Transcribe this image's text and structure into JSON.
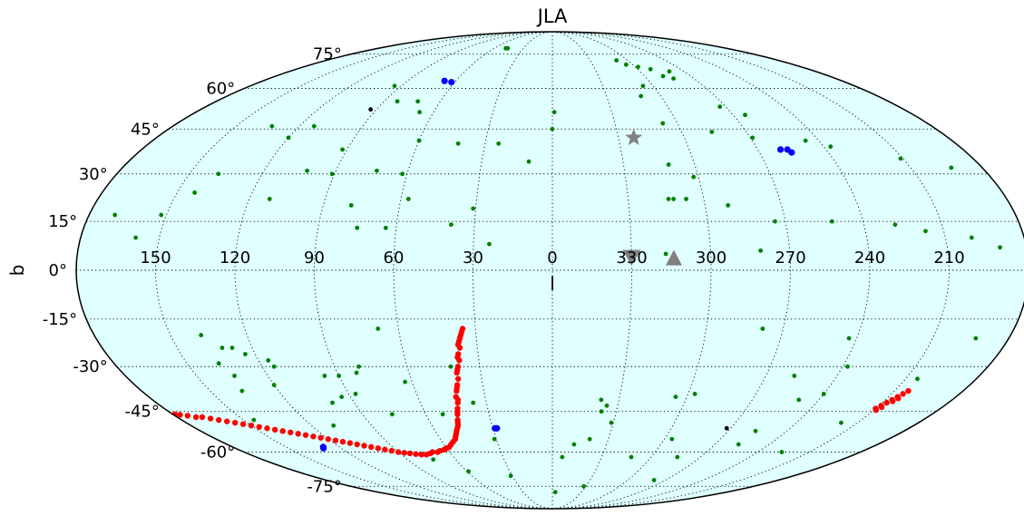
{
  "chart_data": {
    "type": "scatter",
    "projection": "mollweide",
    "title": "JLA",
    "xlabel": "l",
    "ylabel": "b",
    "background_color": "#e0ffff",
    "grid": true,
    "x_tick_labels": [
      150,
      120,
      90,
      60,
      30,
      0,
      330,
      300,
      270,
      240,
      210
    ],
    "y_tick_labels": [
      75,
      60,
      45,
      30,
      15,
      0,
      -15,
      -30,
      -45,
      -60,
      -75
    ],
    "tick_label_strings": {
      "x": [
        "150",
        "120",
        "90",
        "60",
        "30",
        "0",
        "330",
        "300",
        "270",
        "240",
        "210"
      ],
      "y": [
        "75°",
        "60°",
        "45°",
        "30°",
        "15°",
        "0°",
        "-15°",
        "-30°",
        "-45°",
        "-60°",
        "-75°"
      ]
    },
    "xlim": [
      180,
      -180
    ],
    "ylim": [
      -90,
      90
    ],
    "series": [
      {
        "color": "#008000",
        "marker": "circle",
        "points": [
          [
            48,
            78
          ],
          [
            46,
            78
          ],
          [
            0,
            45
          ],
          [
            -51,
            72
          ],
          [
            -55,
            70
          ],
          [
            -62,
            69
          ],
          [
            -69,
            68
          ],
          [
            -80,
            67
          ],
          [
            -72,
            65
          ],
          [
            -77,
            64
          ],
          [
            -54,
            61
          ],
          [
            -49,
            57
          ],
          [
            -87,
            53
          ],
          [
            -96,
            50
          ],
          [
            -53,
            47
          ],
          [
            -74,
            44
          ],
          [
            -91,
            42
          ],
          [
            -114,
            41
          ],
          [
            -123,
            39
          ],
          [
            -149,
            35
          ],
          [
            -167,
            32
          ],
          [
            -49,
            33
          ],
          [
            -58,
            29
          ],
          [
            -48,
            22
          ],
          [
            -53,
            22
          ],
          [
            -46,
            22
          ],
          [
            -69,
            20
          ],
          [
            -86,
            15
          ],
          [
            -108,
            15
          ],
          [
            -132,
            14
          ],
          [
            -143,
            12
          ],
          [
            -160,
            10
          ],
          [
            -170,
            7
          ],
          [
            94,
            61
          ],
          [
            83,
            55
          ],
          [
            72,
            55
          ],
          [
            67,
            51
          ],
          [
            133,
            46
          ],
          [
            113,
            46
          ],
          [
            120,
            42
          ],
          [
            92,
            38
          ],
          [
            60,
            41
          ],
          [
            42,
            40
          ],
          [
            24,
            40
          ],
          [
            -1,
            51
          ],
          [
            10,
            34
          ],
          [
            102,
            31
          ],
          [
            91,
            30
          ],
          [
            73,
            31
          ],
          [
            138,
            30
          ],
          [
            62,
            30
          ],
          [
            143,
            24
          ],
          [
            170,
            17
          ],
          [
            152,
            17
          ],
          [
            112,
            22
          ],
          [
            79,
            20
          ],
          [
            57,
            22
          ],
          [
            31,
            19
          ],
          [
            39,
            14
          ],
          [
            75,
            13
          ],
          [
            64,
            13
          ],
          [
            159,
            10
          ],
          [
            24,
            8
          ],
          [
            -79,
            6
          ],
          [
            -43,
            5
          ],
          [
            -63,
            -39
          ],
          [
            -55,
            -40
          ],
          [
            -25,
            -43
          ],
          [
            -22,
            -41
          ],
          [
            -23,
            -45
          ],
          [
            -20,
            -55
          ],
          [
            -64,
            -55
          ],
          [
            -104,
            -52
          ],
          [
            -120,
            -39
          ],
          [
            -111,
            -41
          ],
          [
            -102,
            -33
          ],
          [
            -117,
            -21
          ],
          [
            -122,
            -30
          ],
          [
            -155,
            -34
          ],
          [
            -167,
            -21
          ],
          [
            -142,
            -49
          ],
          [
            -103,
            -57
          ],
          [
            -48,
            -62
          ],
          [
            -81,
            -72
          ],
          [
            -134,
            -60
          ],
          [
            -29,
            -49
          ],
          [
            -12,
            -57
          ],
          [
            -28,
            -75
          ],
          [
            80,
            -30
          ],
          [
            82,
            -32
          ],
          [
            63,
            -35
          ],
          [
            76,
            -46
          ],
          [
            100,
            -42
          ],
          [
            120,
            -36
          ],
          [
            128,
            -24
          ],
          [
            138,
            -20
          ],
          [
            137,
            -29
          ],
          [
            132,
            -24
          ],
          [
            124,
            -26
          ],
          [
            115,
            -30
          ],
          [
            134,
            -33
          ],
          [
            136,
            -38
          ],
          [
            145,
            -48
          ],
          [
            109,
            -50
          ],
          [
            96,
            -33
          ],
          [
            90,
            -33
          ],
          [
            87,
            -39
          ],
          [
            94,
            -40
          ],
          [
            42,
            -30
          ],
          [
            36,
            -42
          ],
          [
            52,
            -46
          ],
          [
            -6,
            -62
          ],
          [
            -3,
            -78
          ],
          [
            74,
            -63
          ],
          [
            59,
            -68
          ],
          [
            31,
            -70
          ],
          [
            68,
            -18
          ],
          [
            31,
            -55
          ],
          [
            -82,
            -18
          ],
          [
            -76,
            -62
          ],
          [
            116,
            -28
          ]
        ]
      },
      {
        "color": "#0000ff",
        "marker": "circle",
        "points": [
          [
            67,
            63
          ],
          [
            62,
            62.5
          ],
          [
            -103,
            38
          ],
          [
            -104,
            37
          ],
          [
            -100,
            38
          ],
          [
            29,
            -51
          ],
          [
            28,
            -51
          ],
          [
            129,
            -58
          ],
          [
            130,
            -58.5
          ]
        ]
      },
      {
        "color": "#000000",
        "marker": "circle",
        "points": [
          [
            93,
            52
          ],
          [
            -88,
            -51
          ]
        ]
      },
      {
        "color": "#ff0000",
        "marker": "circle",
        "points": [
          [
            35,
            -18
          ],
          [
            36,
            -20
          ],
          [
            37,
            -22
          ],
          [
            37,
            -24
          ],
          [
            38,
            -26
          ],
          [
            38,
            -28
          ],
          [
            39,
            -30
          ],
          [
            40,
            -32
          ],
          [
            40,
            -34
          ],
          [
            41,
            -36
          ],
          [
            42,
            -38
          ],
          [
            43,
            -40
          ],
          [
            43,
            -42
          ],
          [
            44,
            -44
          ],
          [
            45,
            -46
          ],
          [
            46,
            -48
          ],
          [
            47,
            -50
          ],
          [
            49,
            -52
          ],
          [
            51,
            -54
          ],
          [
            54,
            -56
          ],
          [
            58,
            -58
          ],
          [
            62,
            -59
          ],
          [
            67,
            -60
          ],
          [
            72,
            -60.5
          ],
          [
            78,
            -61
          ],
          [
            84,
            -60.5
          ],
          [
            90,
            -60
          ],
          [
            96,
            -59
          ],
          [
            102,
            -58
          ],
          [
            108,
            -57
          ],
          [
            114,
            -56
          ],
          [
            120,
            -55
          ],
          [
            126,
            -54
          ],
          [
            132,
            -53
          ],
          [
            138,
            -52
          ],
          [
            144,
            -51
          ],
          [
            150,
            -50
          ],
          [
            156,
            -49
          ],
          [
            162,
            -48
          ],
          [
            168,
            -47
          ],
          [
            174,
            -46.5
          ],
          [
            179,
            -46
          ],
          [
            35.5,
            -19
          ],
          [
            36.5,
            -21
          ],
          [
            37.5,
            -23
          ],
          [
            38.5,
            -27
          ],
          [
            39.5,
            -31
          ],
          [
            41.5,
            -37
          ],
          [
            42.5,
            -41
          ],
          [
            44.5,
            -45
          ],
          [
            46.5,
            -49
          ],
          [
            48,
            -51
          ],
          [
            50,
            -53
          ],
          [
            52,
            -55
          ],
          [
            56,
            -57
          ],
          [
            60,
            -58.5
          ],
          [
            65,
            -59.5
          ],
          [
            70,
            -60
          ],
          [
            75,
            -61
          ],
          [
            81,
            -60.8
          ],
          [
            87,
            -60.3
          ],
          [
            93,
            -59.5
          ],
          [
            99,
            -58.5
          ],
          [
            105,
            -57.5
          ],
          [
            111,
            -56.5
          ],
          [
            117,
            -55.5
          ],
          [
            123,
            -54.5
          ],
          [
            129,
            -53.5
          ],
          [
            135,
            -52.5
          ],
          [
            141,
            -51.5
          ],
          [
            147,
            -50.5
          ],
          [
            153,
            -49.5
          ],
          [
            159,
            -48.5
          ],
          [
            165,
            -47.5
          ],
          [
            171,
            -47
          ],
          [
            177,
            -46.2
          ],
          [
            -150,
            -44
          ],
          [
            -151,
            -43
          ],
          [
            -152,
            -42
          ],
          [
            -153,
            -41
          ],
          [
            -154,
            -40
          ],
          [
            -155,
            -39
          ],
          [
            -156,
            -38
          ],
          [
            -152,
            -43.5
          ],
          [
            -151,
            -44.5
          ],
          [
            -154,
            -41.5
          ],
          [
            -155,
            -40.5
          ]
        ]
      },
      {
        "color": "#808080",
        "marker": "star",
        "points": [
          [
            -37,
            42
          ]
        ]
      },
      {
        "color": "#808080",
        "marker": "triangle-down",
        "points": [
          [
            -30,
            4
          ]
        ]
      },
      {
        "color": "#808080",
        "marker": "triangle-up",
        "points": [
          [
            -46,
            4
          ]
        ]
      }
    ]
  }
}
